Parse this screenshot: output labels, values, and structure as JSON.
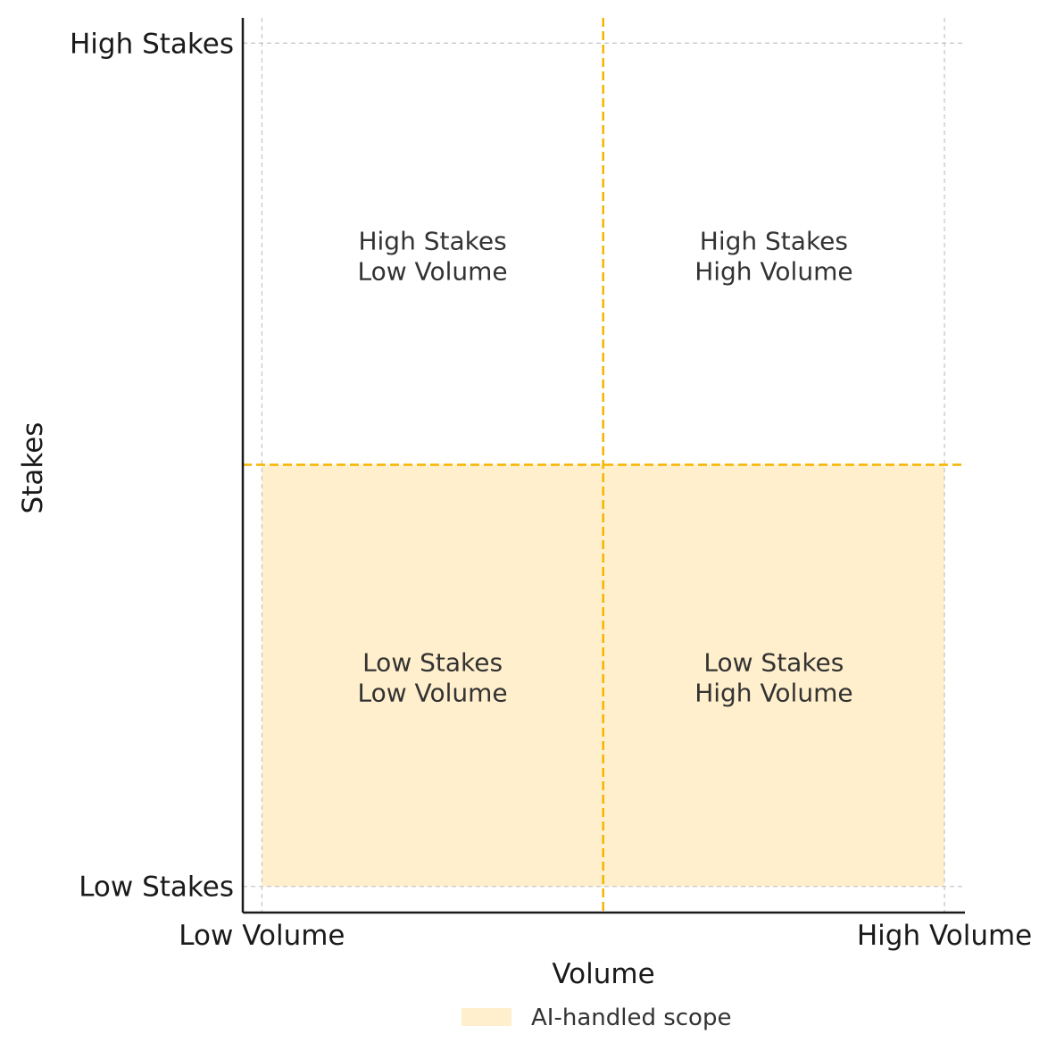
{
  "chart_data": {
    "type": "quadrant",
    "xlabel": "Volume",
    "ylabel": "Stakes",
    "x_ticks": [
      {
        "value": 0,
        "label": "Low Volume"
      },
      {
        "value": 1,
        "label": "High Volume"
      }
    ],
    "y_ticks": [
      {
        "value": 0,
        "label": "Low Stakes"
      },
      {
        "value": 1,
        "label": "High Stakes"
      }
    ],
    "xlim": [
      -0.028,
      1.03
    ],
    "ylim": [
      -0.031,
      1.03
    ],
    "grid": true,
    "dividers": {
      "x": 0.5,
      "y": 0.5,
      "color": "#F5B400"
    },
    "quadrants": [
      {
        "name": "top-left",
        "lines": [
          "High Stakes",
          "Low Volume"
        ],
        "x": 0.25,
        "y": 0.75
      },
      {
        "name": "top-right",
        "lines": [
          "High Stakes",
          "High Volume"
        ],
        "x": 0.75,
        "y": 0.75
      },
      {
        "name": "bottom-left",
        "lines": [
          "Low Stakes",
          "Low Volume"
        ],
        "x": 0.25,
        "y": 0.25
      },
      {
        "name": "bottom-right",
        "lines": [
          "Low Stakes",
          "High Volume"
        ],
        "x": 0.75,
        "y": 0.25
      }
    ],
    "shaded_region": {
      "label": "AI-handled scope",
      "x_range": [
        0,
        1
      ],
      "y_range": [
        0,
        0.5
      ],
      "color": "#FFEFCC"
    },
    "legend": {
      "position": "bottom-center",
      "entries": [
        {
          "label": "AI-handled scope",
          "color": "#FFEFCC"
        }
      ]
    }
  }
}
